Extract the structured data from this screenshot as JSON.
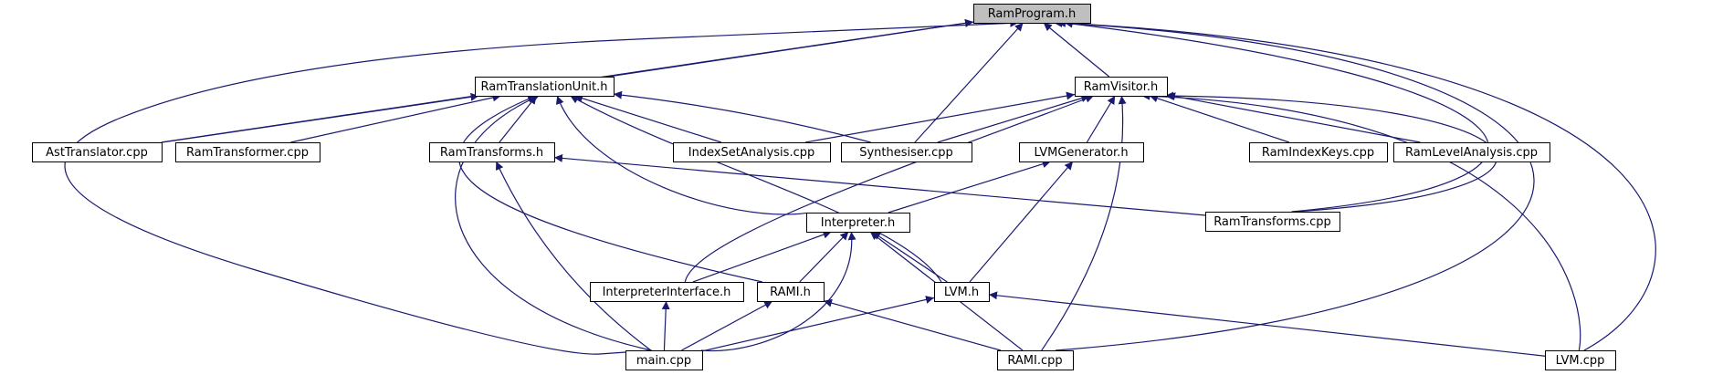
{
  "graph": {
    "edge_color": "#191970",
    "root_fill": "#bfbfbf",
    "node_fill": "#ffffff",
    "nodes": [
      {
        "id": "ramprogram_h",
        "label": "RamProgram.h",
        "root": true
      },
      {
        "id": "ramtranslationunit_h",
        "label": "RamTranslationUnit.h"
      },
      {
        "id": "ramvisitor_h",
        "label": "RamVisitor.h"
      },
      {
        "id": "asttranslator_cpp",
        "label": "AstTranslator.cpp"
      },
      {
        "id": "ramtransformer_cpp",
        "label": "RamTransformer.cpp"
      },
      {
        "id": "ramtransforms_h",
        "label": "RamTransforms.h"
      },
      {
        "id": "indexsetanalysis_cpp",
        "label": "IndexSetAnalysis.cpp"
      },
      {
        "id": "synthesiser_cpp",
        "label": "Synthesiser.cpp"
      },
      {
        "id": "lvmgenerator_h",
        "label": "LVMGenerator.h"
      },
      {
        "id": "ramindexkeys_cpp",
        "label": "RamIndexKeys.cpp"
      },
      {
        "id": "ramlevelanalysis_cpp",
        "label": "RamLevelAnalysis.cpp"
      },
      {
        "id": "interpreter_h",
        "label": "Interpreter.h"
      },
      {
        "id": "ramtransforms_cpp",
        "label": "RamTransforms.cpp"
      },
      {
        "id": "interpreterinterface_h",
        "label": "InterpreterInterface.h"
      },
      {
        "id": "rami_h",
        "label": "RAMI.h"
      },
      {
        "id": "lvm_h",
        "label": "LVM.h"
      },
      {
        "id": "main_cpp",
        "label": "main.cpp"
      },
      {
        "id": "rami_cpp",
        "label": "RAMI.cpp"
      },
      {
        "id": "lvm_cpp",
        "label": "LVM.cpp"
      }
    ],
    "edges": [
      [
        "ramprogram_h",
        "ramtranslationunit_h"
      ],
      [
        "ramprogram_h",
        "ramvisitor_h"
      ],
      [
        "ramprogram_h",
        "asttranslator_cpp"
      ],
      [
        "ramprogram_h",
        "synthesiser_cpp"
      ],
      [
        "ramprogram_h",
        "main_cpp"
      ],
      [
        "ramprogram_h",
        "ramtransforms_cpp"
      ],
      [
        "ramprogram_h",
        "rami_cpp"
      ],
      [
        "ramprogram_h",
        "lvm_cpp"
      ],
      [
        "ramtranslationunit_h",
        "asttranslator_cpp"
      ],
      [
        "ramtranslationunit_h",
        "ramtransformer_cpp"
      ],
      [
        "ramtranslationunit_h",
        "ramtransforms_h"
      ],
      [
        "ramtranslationunit_h",
        "indexsetanalysis_cpp"
      ],
      [
        "ramtranslationunit_h",
        "synthesiser_cpp"
      ],
      [
        "ramtranslationunit_h",
        "interpreter_h"
      ],
      [
        "ramtranslationunit_h",
        "rami_h"
      ],
      [
        "ramtranslationunit_h",
        "lvm_h"
      ],
      [
        "ramtranslationunit_h",
        "main_cpp"
      ],
      [
        "ramvisitor_h",
        "indexsetanalysis_cpp"
      ],
      [
        "ramvisitor_h",
        "synthesiser_cpp"
      ],
      [
        "ramvisitor_h",
        "lvmgenerator_h"
      ],
      [
        "ramvisitor_h",
        "ramindexkeys_cpp"
      ],
      [
        "ramvisitor_h",
        "ramlevelanalysis_cpp"
      ],
      [
        "ramvisitor_h",
        "ramtransforms_cpp"
      ],
      [
        "ramvisitor_h",
        "interpreterinterface_h"
      ],
      [
        "ramvisitor_h",
        "rami_cpp"
      ],
      [
        "ramvisitor_h",
        "lvm_cpp"
      ],
      [
        "ramtransforms_h",
        "ramtransforms_cpp"
      ],
      [
        "ramtransforms_h",
        "main_cpp"
      ],
      [
        "lvmgenerator_h",
        "interpreter_h"
      ],
      [
        "lvmgenerator_h",
        "lvm_h"
      ],
      [
        "interpreter_h",
        "interpreterinterface_h"
      ],
      [
        "interpreter_h",
        "rami_h"
      ],
      [
        "interpreter_h",
        "lvm_h"
      ],
      [
        "interpreter_h",
        "main_cpp"
      ],
      [
        "interpreter_h",
        "rami_cpp"
      ],
      [
        "interpreterinterface_h",
        "main_cpp"
      ],
      [
        "rami_h",
        "main_cpp"
      ],
      [
        "rami_h",
        "rami_cpp"
      ],
      [
        "lvm_h",
        "main_cpp"
      ],
      [
        "lvm_h",
        "lvm_cpp"
      ]
    ]
  }
}
